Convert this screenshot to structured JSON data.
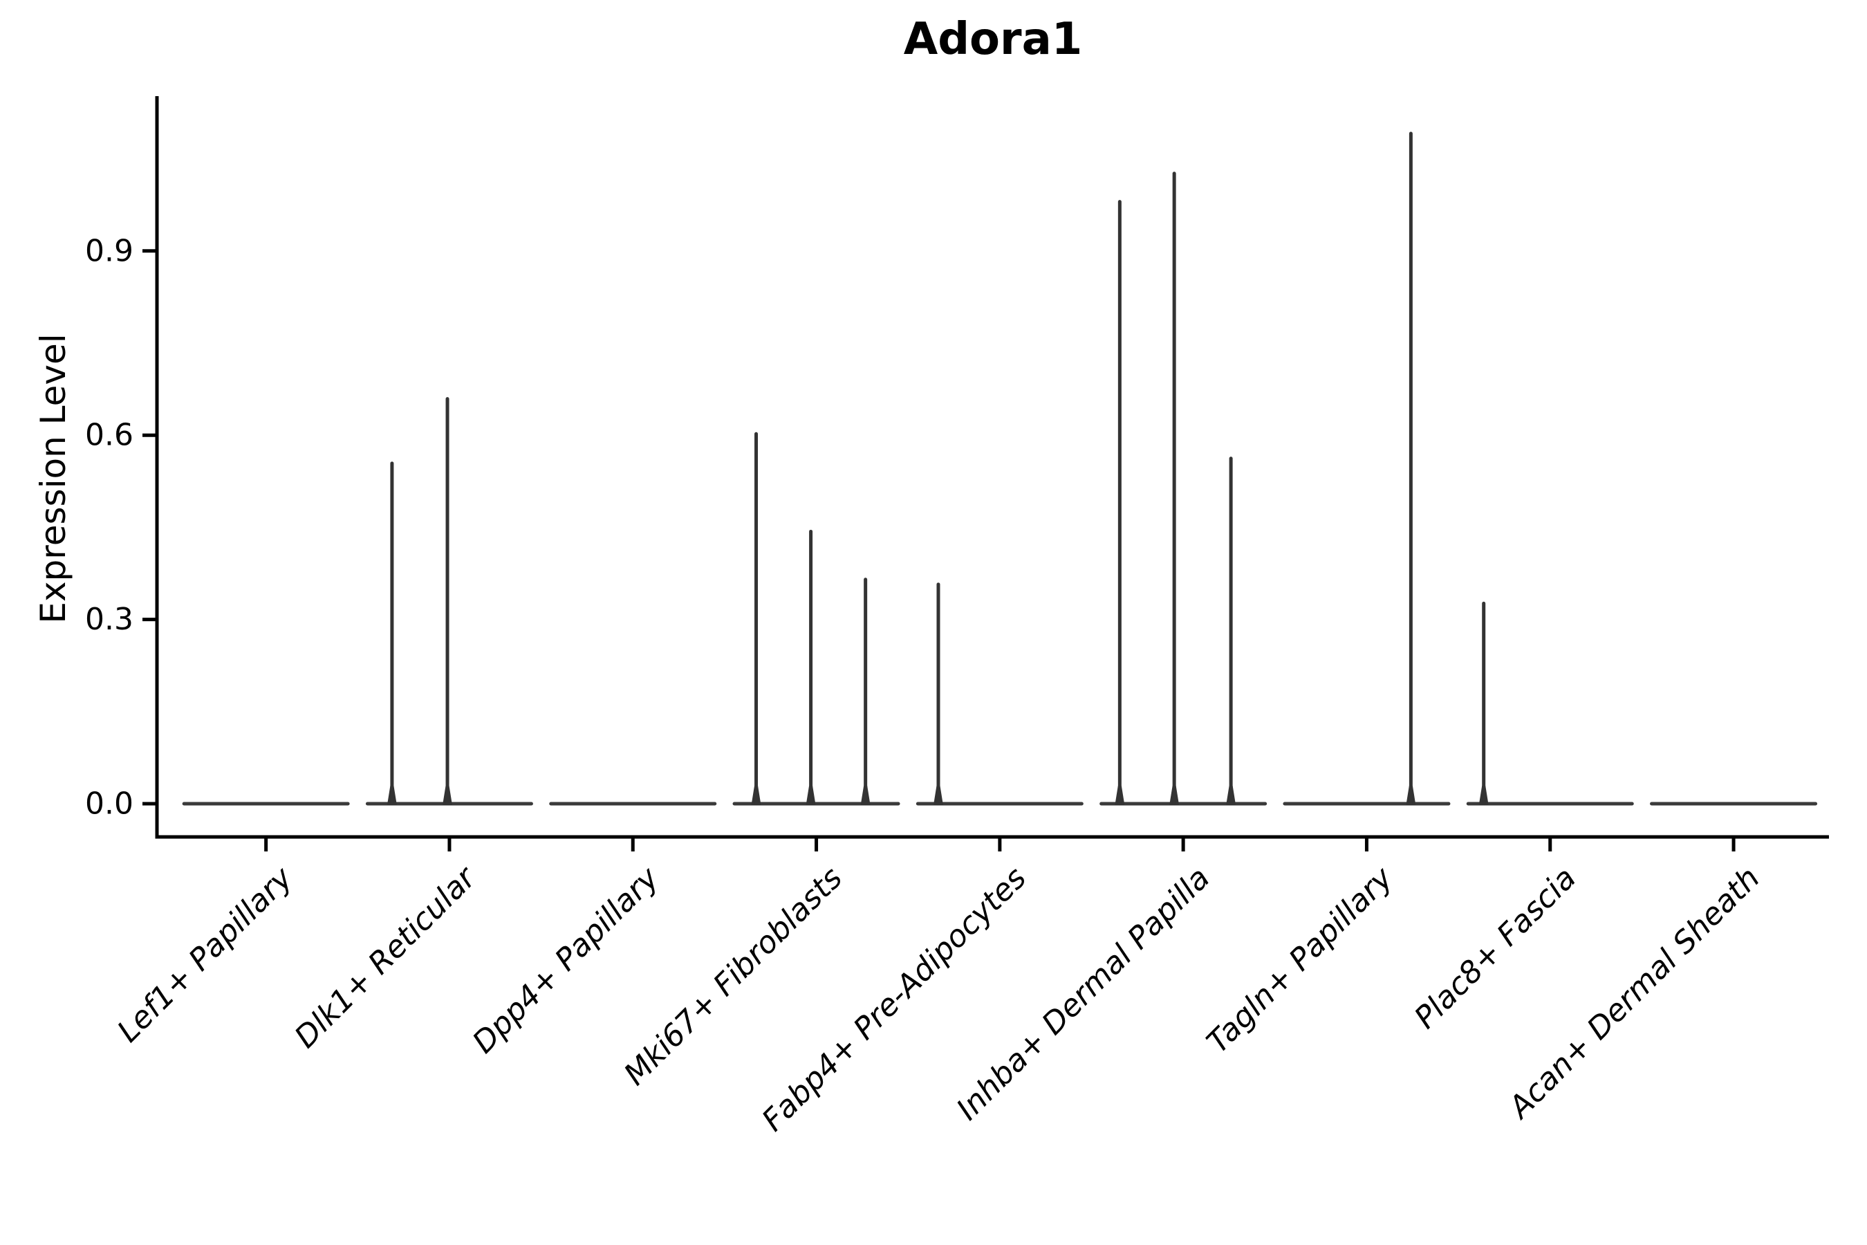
{
  "page": {
    "background": "#ffffff"
  },
  "chart_data": {
    "type": "violin",
    "title": "Adora1",
    "ylabel": "Expression Level",
    "xlabel": "",
    "grid": false,
    "legend": "none",
    "ylim": [
      -0.054,
      1.152
    ],
    "y_ticks": [
      {
        "label": "0.0",
        "value": 0.0
      },
      {
        "label": "0.3",
        "value": 0.3
      },
      {
        "label": "0.6",
        "value": 0.6
      },
      {
        "label": "0.9",
        "value": 0.9
      }
    ],
    "categories": [
      "Lef1+ Papillary",
      "Dlk1+ Reticular",
      "Dpp4+ Papillary",
      "Mki67+ Fibroblasts",
      "Fabp4+ Pre-Adipocytes",
      "Inhba+ Dermal Papilla",
      "Tagln+ Papillary",
      "Plac8+ Fascia",
      "Acan+ Dermal Sheath"
    ],
    "violins": [
      {
        "category": "Lef1+ Papillary",
        "flat_baseline": 0.0,
        "spikes": []
      },
      {
        "category": "Dlk1+ Reticular",
        "flat_baseline": 0.0,
        "spikes": [
          {
            "x_offset_frac": -0.313,
            "value": 0.557
          },
          {
            "x_offset_frac": -0.011,
            "value": 0.662
          }
        ]
      },
      {
        "category": "Dpp4+ Papillary",
        "flat_baseline": 0.0,
        "spikes": []
      },
      {
        "category": "Mki67+ Fibroblasts",
        "flat_baseline": 0.0,
        "spikes": [
          {
            "x_offset_frac": -0.328,
            "value": 0.605
          },
          {
            "x_offset_frac": -0.03,
            "value": 0.446
          },
          {
            "x_offset_frac": 0.268,
            "value": 0.368
          }
        ]
      },
      {
        "category": "Fabp4+ Pre-Adipocytes",
        "flat_baseline": 0.0,
        "spikes": [
          {
            "x_offset_frac": -0.335,
            "value": 0.36
          }
        ]
      },
      {
        "category": "Inhba+ Dermal Papilla",
        "flat_baseline": 0.0,
        "spikes": [
          {
            "x_offset_frac": -0.346,
            "value": 0.983
          },
          {
            "x_offset_frac": -0.049,
            "value": 1.029
          },
          {
            "x_offset_frac": 0.26,
            "value": 0.565
          }
        ]
      },
      {
        "category": "Tagln+ Papillary",
        "flat_baseline": 0.0,
        "spikes": [
          {
            "x_offset_frac": 0.241,
            "value": 1.094
          }
        ]
      },
      {
        "category": "Plac8+ Fascia",
        "flat_baseline": 0.0,
        "spikes": [
          {
            "x_offset_frac": -0.362,
            "value": 0.329
          }
        ]
      },
      {
        "category": "Acan+ Dermal Sheath",
        "flat_baseline": 0.0,
        "spikes": []
      }
    ],
    "colors": {
      "violin_fill": "#3a3a3a",
      "spike": "#333333",
      "axis": "#000000",
      "text": "#000000"
    }
  }
}
